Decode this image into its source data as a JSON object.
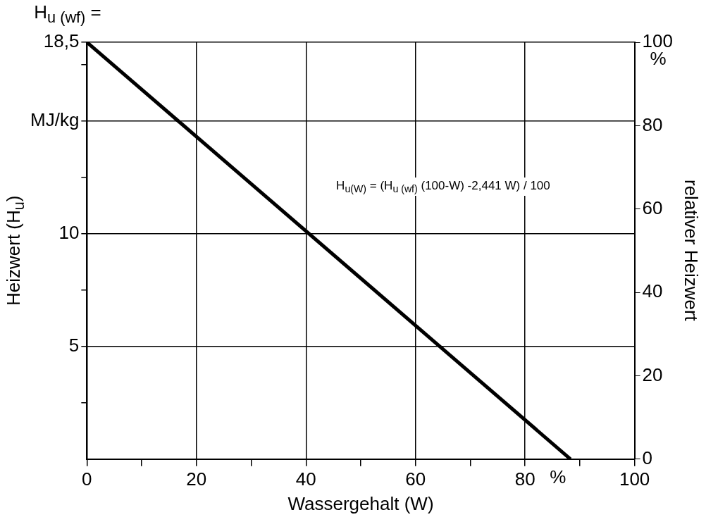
{
  "chart_data": {
    "type": "line",
    "title": "H$_{u (wf)}$ =",
    "xlabel": "Wassergehalt (W)",
    "ylabel": "Heizwert (H$_{u}$)",
    "y2label": "relativer Heizwert",
    "annotations": [
      "H$_{u(W)}$ = (H$_{u (wf)}$ (100-W) -2,441 W) / 100",
      "%",
      "%"
    ],
    "series": [
      {
        "color": "#000000",
        "x": [
          0,
          88.3
        ],
        "values": [
          18.5,
          0
        ]
      }
    ],
    "xlim": [
      0,
      100
    ],
    "xticks": [
      0,
      {
        "value": 10,
        "label": null
      },
      20,
      {
        "value": 30,
        "label": null
      },
      40,
      {
        "value": 50,
        "label": null
      },
      60,
      {
        "value": 70,
        "label": null
      },
      80,
      {
        "value": 90,
        "label": null
      },
      100
    ],
    "ylim": [
      0,
      18.5
    ],
    "yticks": [
      {
        "value": 2.5,
        "label": null
      },
      5,
      {
        "value": 7.5,
        "label": null
      },
      10,
      {
        "value": 12.5,
        "label": null
      },
      {
        "value": 15,
        "label": "MJ/kg"
      },
      {
        "value": 17.5,
        "label": null
      },
      {
        "value": 18.5,
        "label": "18,5"
      }
    ],
    "y2lim": [
      0,
      100
    ],
    "y2ticks": [
      0,
      20,
      40,
      60,
      80,
      100
    ],
    "grid": true,
    "legend": false,
    "marker": "none",
    "line_style": "solid"
  }
}
